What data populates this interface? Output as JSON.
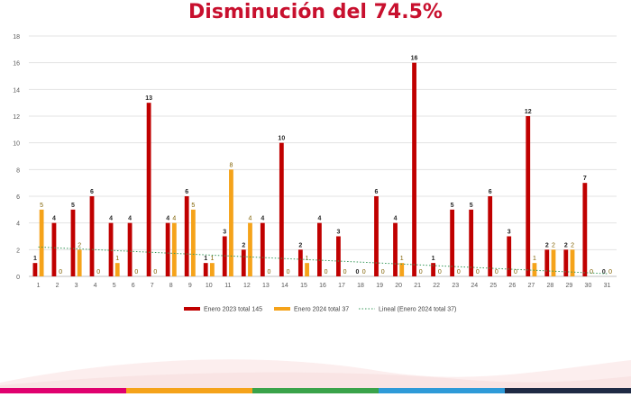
{
  "page": {
    "title": "Disminución del 74.5%",
    "title_color": "#c8102e"
  },
  "chart_data": {
    "type": "bar",
    "categories": [
      "1",
      "2",
      "3",
      "4",
      "5",
      "6",
      "7",
      "8",
      "9",
      "10",
      "11",
      "12",
      "13",
      "14",
      "15",
      "16",
      "17",
      "18",
      "19",
      "20",
      "21",
      "22",
      "23",
      "24",
      "25",
      "26",
      "27",
      "28",
      "29",
      "30",
      "31"
    ],
    "series": [
      {
        "name": "Enero 2023 total 145",
        "color": "#c00000",
        "values": [
          1,
          4,
          5,
          6,
          4,
          4,
          13,
          4,
          6,
          1,
          3,
          2,
          4,
          10,
          2,
          4,
          3,
          0,
          6,
          4,
          16,
          1,
          5,
          5,
          6,
          3,
          12,
          2,
          2,
          7,
          0
        ]
      },
      {
        "name": "Enero 2024 total 37",
        "color": "#f5a31a",
        "values": [
          5,
          0,
          2,
          0,
          1,
          0,
          0,
          4,
          5,
          1,
          8,
          4,
          0,
          0,
          1,
          0,
          0,
          0,
          0,
          1,
          0,
          0,
          0,
          0,
          0,
          0,
          1,
          2,
          2,
          0,
          0
        ]
      }
    ],
    "trendline": {
      "name": "Lineal (Enero 2024 total 37)",
      "color": "#3a9a5c",
      "y_start": 2.2,
      "y_end": 0.2
    },
    "ylim": [
      0,
      18
    ],
    "yticks": [
      0,
      2,
      4,
      6,
      8,
      10,
      12,
      14,
      16,
      18
    ],
    "grid": true,
    "legend_position": "bottom"
  },
  "footer": {
    "bar_colors": [
      "#e0006f",
      "#f5a31a",
      "#3aa34a",
      "#2e9ad8",
      "#1f2a44"
    ]
  }
}
